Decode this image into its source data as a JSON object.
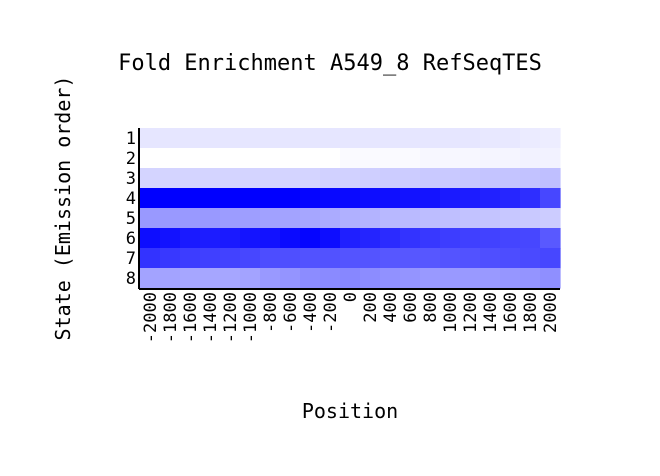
{
  "chart_data": {
    "type": "heatmap",
    "title": "Fold Enrichment A549_8 RefSeqTES",
    "xlabel": "Position",
    "ylabel": "State (Emission order)",
    "x": [
      "-2000",
      "-1800",
      "-1600",
      "-1400",
      "-1200",
      "-1000",
      "-800",
      "-600",
      "-400",
      "-200",
      "0",
      "200",
      "400",
      "600",
      "800",
      "1000",
      "1200",
      "1400",
      "1600",
      "1800",
      "2000"
    ],
    "y": [
      "1",
      "2",
      "3",
      "4",
      "5",
      "6",
      "7",
      "8"
    ],
    "color_scale": {
      "low": "#ffffff",
      "high": "#0000ff",
      "min": 0,
      "max": 1
    },
    "values": [
      [
        0.1,
        0.1,
        0.1,
        0.1,
        0.1,
        0.1,
        0.1,
        0.1,
        0.1,
        0.1,
        0.1,
        0.1,
        0.1,
        0.1,
        0.1,
        0.1,
        0.1,
        0.09,
        0.09,
        0.08,
        0.07
      ],
      [
        0.0,
        0.0,
        0.0,
        0.0,
        0.0,
        0.0,
        0.0,
        0.0,
        0.0,
        0.0,
        0.02,
        0.02,
        0.02,
        0.02,
        0.03,
        0.03,
        0.03,
        0.04,
        0.04,
        0.05,
        0.05
      ],
      [
        0.17,
        0.17,
        0.17,
        0.17,
        0.17,
        0.17,
        0.17,
        0.17,
        0.17,
        0.18,
        0.18,
        0.19,
        0.2,
        0.2,
        0.21,
        0.21,
        0.22,
        0.23,
        0.23,
        0.24,
        0.25
      ],
      [
        1.0,
        1.0,
        1.0,
        1.0,
        1.0,
        1.0,
        1.0,
        1.0,
        0.98,
        0.97,
        0.96,
        0.95,
        0.94,
        0.93,
        0.92,
        0.9,
        0.89,
        0.87,
        0.85,
        0.82,
        0.72
      ],
      [
        0.4,
        0.4,
        0.4,
        0.4,
        0.39,
        0.38,
        0.37,
        0.36,
        0.35,
        0.33,
        0.31,
        0.3,
        0.28,
        0.27,
        0.26,
        0.25,
        0.24,
        0.23,
        0.22,
        0.21,
        0.2
      ],
      [
        0.95,
        0.93,
        0.9,
        0.89,
        0.9,
        0.92,
        0.93,
        0.96,
        0.98,
        0.95,
        0.88,
        0.86,
        0.83,
        0.8,
        0.78,
        0.76,
        0.75,
        0.74,
        0.73,
        0.72,
        0.65
      ],
      [
        0.8,
        0.78,
        0.76,
        0.75,
        0.74,
        0.72,
        0.7,
        0.69,
        0.68,
        0.68,
        0.67,
        0.67,
        0.66,
        0.66,
        0.66,
        0.67,
        0.68,
        0.69,
        0.7,
        0.71,
        0.72
      ],
      [
        0.36,
        0.36,
        0.35,
        0.35,
        0.35,
        0.36,
        0.4,
        0.42,
        0.45,
        0.46,
        0.47,
        0.45,
        0.43,
        0.42,
        0.4,
        0.4,
        0.4,
        0.4,
        0.41,
        0.42,
        0.44
      ]
    ]
  }
}
